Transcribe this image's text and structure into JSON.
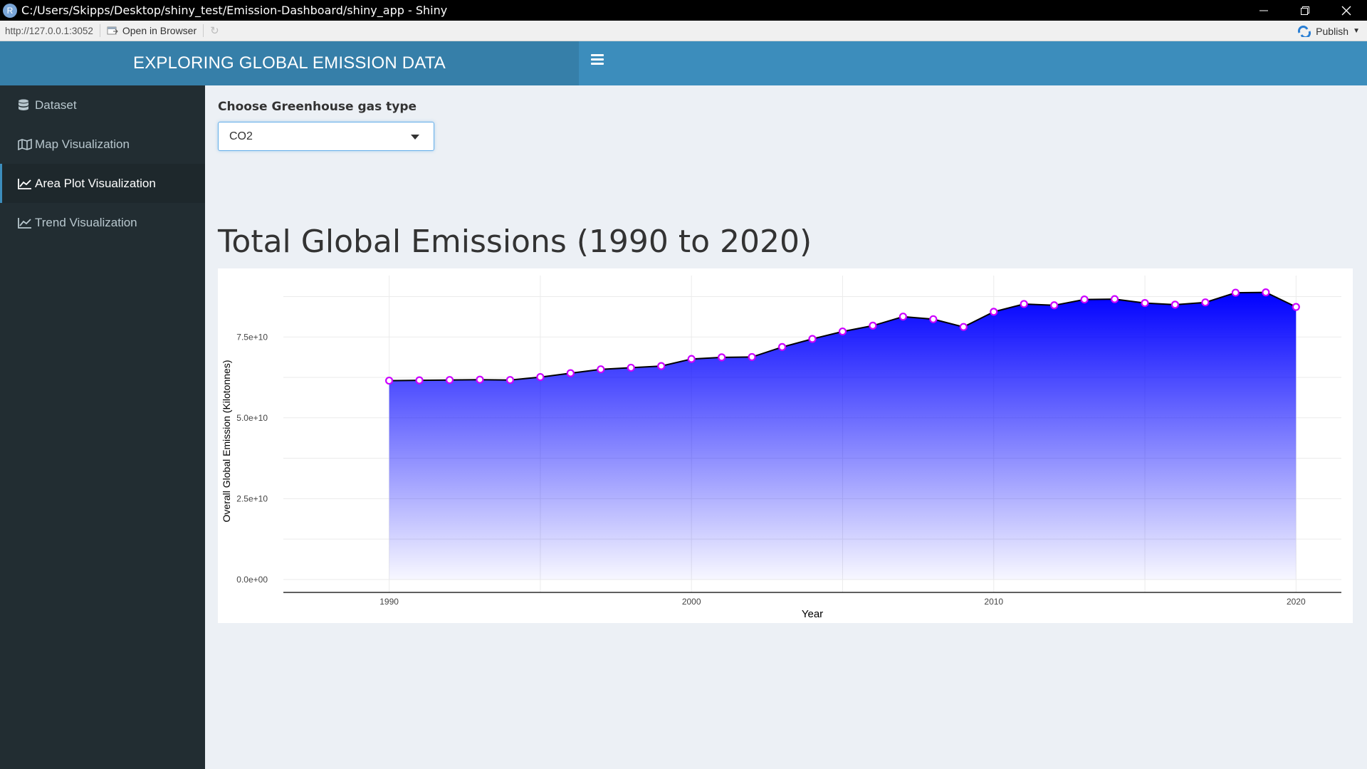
{
  "window": {
    "icon_letter": "R",
    "title": "C:/Users/Skipps/Desktop/shiny_test/Emission-Dashboard/shiny_app - Shiny",
    "controls": [
      "minimize-icon",
      "restore-icon",
      "close-icon"
    ]
  },
  "toolbar": {
    "url": "http://127.0.0.1:3052",
    "open_in_browser": "Open in Browser",
    "publish": "Publish"
  },
  "header": {
    "title": "EXPLORING GLOBAL EMISSION DATA"
  },
  "sidebar": {
    "items": [
      {
        "label": "Dataset",
        "icon": "database-icon",
        "active": false
      },
      {
        "label": "Map Visualization",
        "icon": "map-icon",
        "active": false
      },
      {
        "label": "Area Plot Visualization",
        "icon": "area-chart-icon",
        "active": true
      },
      {
        "label": "Trend Visualization",
        "icon": "line-chart-icon",
        "active": false
      }
    ]
  },
  "control": {
    "label": "Choose Greenhouse gas type",
    "selected": "CO2"
  },
  "chart_title": "Total Global Emissions (1990 to 2020)",
  "chart_data": {
    "type": "area",
    "title": "Total Global Emissions (1990 to 2020)",
    "xlabel": "Year",
    "ylabel": "Overall Global Emission (Kilotonnes)",
    "xlim": [
      1986.5,
      2021.5
    ],
    "ylim": [
      -4000000000,
      94000000000
    ],
    "x_ticks": [
      1990,
      2000,
      2010,
      2020
    ],
    "y_ticks": [
      0,
      25000000000,
      50000000000,
      75000000000
    ],
    "y_tick_labels": [
      "0.0e+00",
      "2.5e+10",
      "5.0e+10",
      "7.5e+10"
    ],
    "grid": true,
    "fill_color": "#0000ff",
    "line_color": "#000000",
    "point_color": "#cc00ff",
    "x": [
      1990,
      1991,
      1992,
      1993,
      1994,
      1995,
      1996,
      1997,
      1998,
      1999,
      2000,
      2001,
      2002,
      2003,
      2004,
      2005,
      2006,
      2007,
      2008,
      2009,
      2010,
      2011,
      2012,
      2013,
      2014,
      2015,
      2016,
      2017,
      2018,
      2019,
      2020
    ],
    "values": [
      61500000000,
      61600000000,
      61700000000,
      61800000000,
      61700000000,
      62600000000,
      63800000000,
      65000000000,
      65500000000,
      66000000000,
      68200000000,
      68700000000,
      68800000000,
      71900000000,
      74400000000,
      76700000000,
      78500000000,
      81300000000,
      80500000000,
      78100000000,
      82800000000,
      85200000000,
      84800000000,
      86600000000,
      86700000000,
      85500000000,
      85000000000,
      85700000000,
      88700000000,
      88800000000,
      84300000000
    ]
  }
}
